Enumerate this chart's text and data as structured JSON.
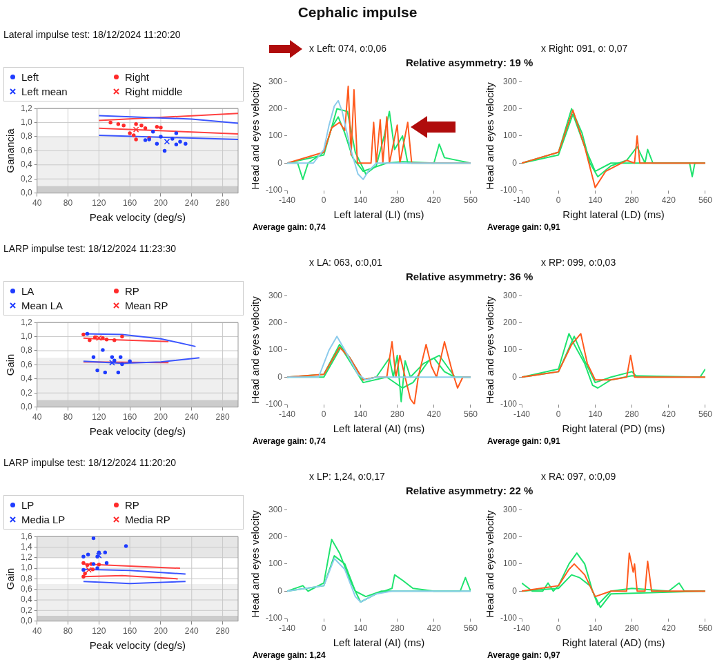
{
  "chart_data": [
    {
      "type": "other",
      "title": "Cephalic impulse"
    },
    {
      "type": "scatter",
      "title": "Lateral impulse test: 18/12/2024 11:20:20",
      "xlabel": "Peak velocity (deg/s)",
      "ylabel": "Ganancia",
      "xlim": [
        40,
        300
      ],
      "xticks": [
        40,
        80,
        120,
        160,
        200,
        240,
        280
      ],
      "ylim": [
        0,
        1.2
      ],
      "yticks": [
        {
          "value": 0,
          "label": "0,0"
        },
        {
          "value": 0.2,
          "label": "0,2"
        },
        {
          "value": 0.4,
          "label": "0,4"
        },
        {
          "value": 0.6,
          "label": "0,6"
        },
        {
          "value": 0.8,
          "label": "0,8"
        },
        {
          "value": 1,
          "label": "1,0"
        },
        {
          "value": 1.2,
          "label": "1,2"
        }
      ],
      "grid": true,
      "legend": "top",
      "bands": [
        {
          "axis": "y",
          "from": 0,
          "to": 0.8,
          "color": "#efefef"
        },
        {
          "axis": "y",
          "from": 0,
          "to": 0.1,
          "color": "#cccccc"
        }
      ],
      "series": [
        {
          "name": "Left",
          "color": "#1f3cff",
          "marker": "circle",
          "x": [
            180,
            185,
            190,
            195,
            200,
            205,
            215,
            220,
            220,
            225,
            232
          ],
          "values": [
            0.75,
            0.76,
            0.87,
            0.7,
            0.8,
            0.6,
            0.77,
            0.69,
            0.85,
            0.73,
            0.7
          ]
        },
        {
          "name": "Right",
          "color": "#ff2a2a",
          "marker": "circle",
          "x": [
            135,
            145,
            152,
            160,
            165,
            168,
            168,
            175,
            180,
            185,
            195,
            200
          ],
          "values": [
            1,
            0.98,
            0.96,
            0.85,
            0.82,
            0.98,
            0.76,
            0.96,
            0.92,
            0.78,
            0.94,
            0.93
          ]
        },
        {
          "name": "Left mean",
          "color": "#1f3cff",
          "marker": "cross",
          "x": [
            208
          ],
          "values": [
            0.73
          ]
        },
        {
          "name": "Right middle",
          "color": "#ff2a2a",
          "marker": "cross",
          "x": [
            168
          ],
          "values": [
            0.9
          ]
        },
        {
          "type": "line",
          "color": "#3b55ff",
          "marker": "none",
          "x": [
            120,
            240,
            300
          ],
          "values": [
            1.1,
            1.05,
            0.99
          ]
        },
        {
          "type": "line",
          "color": "#3b55ff",
          "marker": "none",
          "x": [
            120,
            300
          ],
          "values": [
            0.82,
            0.76
          ]
        },
        {
          "type": "line",
          "color": "#ff4040",
          "marker": "none",
          "x": [
            120,
            300
          ],
          "values": [
            1.03,
            1.13
          ]
        },
        {
          "type": "line",
          "color": "#ff4040",
          "marker": "none",
          "x": [
            120,
            300
          ],
          "values": [
            0.92,
            0.84
          ]
        }
      ]
    },
    {
      "type": "line",
      "title": "Relative asymmetry: 19 %",
      "subtitle": "x Left: 074, o:0,06",
      "xlabel": "Left lateral (LI) (ms)",
      "ylabel": "Head and eyes velocity",
      "xlim": [
        -140,
        560
      ],
      "xticks": [
        -140,
        0,
        140,
        280,
        420,
        560
      ],
      "ylim": [
        -100,
        300
      ],
      "yticks": [
        -100,
        0,
        100,
        200,
        300
      ],
      "grid": false,
      "marker": "none",
      "annotations": [
        "Average gain: 0,74"
      ],
      "series": [
        {
          "color": "#8ccbec",
          "x": [
            -140,
            -40,
            0,
            20,
            40,
            55,
            70,
            100,
            130,
            150,
            170,
            200,
            560
          ],
          "values": [
            0,
            0,
            50,
            140,
            210,
            230,
            190,
            60,
            -40,
            -60,
            -30,
            0,
            0
          ]
        },
        {
          "color": "#ff5a1e",
          "x": [
            -140,
            0,
            30,
            60,
            80,
            93,
            104,
            115,
            128,
            180,
            190,
            200,
            215,
            225,
            240,
            250,
            280,
            290,
            320,
            335,
            560
          ],
          "values": [
            0,
            40,
            130,
            150,
            120,
            283,
            30,
            270,
            0,
            0,
            150,
            0,
            160,
            0,
            170,
            0,
            140,
            0,
            150,
            0,
            0
          ]
        },
        {
          "color": "#1ee36e",
          "x": [
            -140,
            -100,
            -80,
            -60,
            0,
            30,
            55,
            80,
            110,
            150,
            180,
            240,
            300,
            420,
            440,
            460,
            560
          ],
          "values": [
            0,
            0,
            -60,
            0,
            40,
            130,
            170,
            110,
            20,
            -30,
            -20,
            0,
            5,
            0,
            70,
            20,
            0
          ]
        },
        {
          "color": "#1ee36e",
          "x": [
            -140,
            0,
            50,
            90,
            120,
            160,
            200,
            230,
            250,
            270,
            300,
            320,
            560
          ],
          "values": [
            0,
            30,
            200,
            190,
            40,
            -40,
            -10,
            100,
            190,
            50,
            100,
            0,
            0
          ]
        }
      ]
    },
    {
      "type": "line",
      "subtitle": "x Right: 091, o: 0,07",
      "xlabel": "Right lateral (LD) (ms)",
      "ylabel": "Head and eyes velocity",
      "xlim": [
        -140,
        560
      ],
      "xticks": [
        -140,
        0,
        140,
        280,
        420,
        560
      ],
      "ylim": [
        -100,
        300
      ],
      "yticks": [
        -100,
        0,
        100,
        200,
        300
      ],
      "grid": false,
      "marker": "none",
      "annotations": [
        "Average gain: 0,91"
      ],
      "series": [
        {
          "color": "#ff5a1e",
          "x": [
            -140,
            0,
            55,
            100,
            140,
            180,
            260,
            290,
            300,
            310,
            560
          ],
          "values": [
            0,
            40,
            195,
            60,
            -90,
            -30,
            10,
            0,
            100,
            0,
            0
          ]
        },
        {
          "color": "#1ee36e",
          "x": [
            -140,
            0,
            50,
            90,
            120,
            150,
            200,
            260,
            300,
            330,
            340,
            360,
            500,
            510,
            520,
            560
          ],
          "values": [
            0,
            40,
            200,
            110,
            0,
            -50,
            -10,
            10,
            60,
            0,
            50,
            0,
            0,
            -50,
            0,
            0
          ]
        },
        {
          "color": "#1ee36e",
          "x": [
            -140,
            0,
            55,
            100,
            140,
            200,
            560
          ],
          "values": [
            0,
            30,
            180,
            60,
            -30,
            0,
            0
          ]
        }
      ]
    },
    {
      "type": "scatter",
      "title": "LARP impulse test: 18/12/2024 11:23:30",
      "xlabel": "Peak velocity (deg/s)",
      "ylabel": "Gain",
      "xlim": [
        40,
        300
      ],
      "xticks": [
        40,
        80,
        120,
        160,
        200,
        240,
        280
      ],
      "ylim": [
        0,
        1.2
      ],
      "yticks": [
        {
          "value": 0,
          "label": "0,0"
        },
        {
          "value": 0.2,
          "label": "0,2"
        },
        {
          "value": 0.4,
          "label": "0,4"
        },
        {
          "value": 0.6,
          "label": "0,6"
        },
        {
          "value": 0.8,
          "label": "0,8"
        },
        {
          "value": 1,
          "label": "1,0"
        },
        {
          "value": 1.2,
          "label": "1,2"
        }
      ],
      "grid": true,
      "legend": "top",
      "bands": [
        {
          "axis": "y",
          "from": 0,
          "to": 0.7,
          "color": "#efefef"
        },
        {
          "axis": "y",
          "from": 0,
          "to": 0.1,
          "color": "#cccccc"
        }
      ],
      "series": [
        {
          "name": "LA",
          "color": "#1f3cff",
          "marker": "circle",
          "x": [
            105,
            113,
            118,
            125,
            128,
            137,
            140,
            145,
            148,
            150,
            160
          ],
          "values": [
            1.04,
            0.71,
            0.52,
            0.81,
            0.49,
            0.71,
            0.66,
            0.49,
            0.71,
            0.61,
            0.65
          ]
        },
        {
          "name": "RP",
          "color": "#ff2a2a",
          "marker": "circle",
          "x": [
            100,
            108,
            115,
            125,
            130,
            140,
            150
          ],
          "values": [
            1.03,
            0.95,
            0.99,
            0.98,
            0.96,
            0.95,
            1
          ]
        },
        {
          "name": "Mean LA",
          "color": "#1f3cff",
          "marker": "cross",
          "x": [
            137
          ],
          "values": [
            0.63
          ]
        },
        {
          "name": "Mean RP",
          "color": "#ff2a2a",
          "marker": "cross",
          "x": [
            120
          ],
          "values": [
            0.98
          ]
        },
        {
          "type": "line",
          "color": "#3b55ff",
          "marker": "none",
          "x": [
            100,
            150,
            200,
            245
          ],
          "values": [
            1.04,
            1.03,
            0.97,
            0.86
          ]
        },
        {
          "type": "line",
          "color": "#3b55ff",
          "marker": "none",
          "x": [
            100,
            150,
            200,
            250
          ],
          "values": [
            0.65,
            0.62,
            0.64,
            0.7
          ]
        },
        {
          "type": "line",
          "color": "#ff4040",
          "marker": "none",
          "x": [
            100,
            130,
            210
          ],
          "values": [
            0.98,
            0.96,
            0.93
          ]
        },
        {
          "type": "line",
          "color": "#ff4040",
          "marker": "none",
          "x": [
            100,
            210
          ],
          "values": [
            0.64,
            0.63
          ]
        }
      ]
    },
    {
      "type": "line",
      "title": "Relative asymmetry: 36 %",
      "subtitle": "x LA: 063, o:0,01",
      "xlabel": "Left lateral (AI) (ms)",
      "ylabel": "Head and eyes velocity",
      "xlim": [
        -140,
        560
      ],
      "xticks": [
        -140,
        0,
        140,
        280,
        420,
        560
      ],
      "ylim": [
        -100,
        300
      ],
      "yticks": [
        -100,
        0,
        100,
        200,
        300
      ],
      "grid": false,
      "marker": "none",
      "annotations": [
        "Average gain: 0,74"
      ],
      "series": [
        {
          "color": "#8ccbec",
          "x": [
            -140,
            -20,
            20,
            50,
            80,
            130,
            160,
            200,
            560
          ],
          "values": [
            0,
            0,
            100,
            150,
            100,
            10,
            -10,
            0,
            0
          ]
        },
        {
          "color": "#ff5a1e",
          "x": [
            -140,
            0,
            60,
            100,
            150,
            200,
            240,
            260,
            275,
            290,
            310,
            330,
            345,
            360,
            390,
            410,
            430,
            460,
            490,
            510,
            530,
            560
          ],
          "values": [
            0,
            10,
            110,
            70,
            -10,
            0,
            0,
            130,
            0,
            80,
            0,
            -80,
            -100,
            0,
            120,
            40,
            0,
            130,
            20,
            -40,
            0,
            0
          ]
        },
        {
          "color": "#1ee36e",
          "x": [
            -140,
            0,
            60,
            100,
            150,
            200,
            250,
            265,
            280,
            295,
            310,
            330,
            380,
            420,
            460,
            500,
            560
          ],
          "values": [
            0,
            10,
            120,
            70,
            -10,
            0,
            70,
            0,
            80,
            -90,
            60,
            0,
            50,
            70,
            20,
            0,
            0
          ]
        },
        {
          "color": "#1ee36e",
          "x": [
            -140,
            0,
            65,
            150,
            240,
            300,
            340,
            400,
            440,
            470,
            500,
            560
          ],
          "values": [
            0,
            0,
            110,
            -20,
            0,
            -40,
            -20,
            60,
            80,
            40,
            0,
            0
          ]
        }
      ]
    },
    {
      "type": "line",
      "subtitle": "x RP: 099, o:0,03",
      "xlabel": "Right lateral (PD) (ms)",
      "ylabel": "Head and eyes velocity",
      "xlim": [
        -140,
        560
      ],
      "xticks": [
        -140,
        0,
        140,
        280,
        420,
        560
      ],
      "ylim": [
        -100,
        300
      ],
      "yticks": [
        -100,
        0,
        100,
        200,
        300
      ],
      "grid": false,
      "marker": "none",
      "annotations": [
        "Average gain: 0,91"
      ],
      "series": [
        {
          "color": "#ff5a1e",
          "x": [
            -140,
            0,
            50,
            85,
            110,
            140,
            200,
            260,
            275,
            290,
            560
          ],
          "values": [
            0,
            20,
            120,
            160,
            50,
            -10,
            -10,
            0,
            80,
            0,
            0
          ]
        },
        {
          "color": "#1ee36e",
          "x": [
            -140,
            0,
            40,
            60,
            100,
            130,
            150,
            200,
            280,
            540,
            560
          ],
          "values": [
            0,
            30,
            160,
            120,
            50,
            -30,
            -40,
            -10,
            5,
            0,
            30
          ]
        },
        {
          "color": "#1ee36e",
          "x": [
            -140,
            0,
            60,
            100,
            140,
            200,
            280,
            300,
            560
          ],
          "values": [
            0,
            20,
            150,
            60,
            -20,
            0,
            20,
            0,
            0
          ]
        }
      ]
    },
    {
      "type": "scatter",
      "title": "LARP impulse test: 18/12/2024 11:20:20",
      "xlabel": "Peak velocity (deg/s)",
      "ylabel": "Gain",
      "xlim": [
        40,
        300
      ],
      "xticks": [
        40,
        80,
        120,
        160,
        200,
        240,
        280
      ],
      "ylim": [
        0,
        1.6
      ],
      "yticks": [
        {
          "value": 0,
          "label": "0,0"
        },
        {
          "value": 0.2,
          "label": "0,2"
        },
        {
          "value": 0.4,
          "label": "0,4"
        },
        {
          "value": 0.6,
          "label": "0,6"
        },
        {
          "value": 0.8,
          "label": "0,8"
        },
        {
          "value": 1,
          "label": "1,0"
        },
        {
          "value": 1.2,
          "label": "1,2"
        },
        {
          "value": 1.4,
          "label": "1,4"
        },
        {
          "value": 1.6,
          "label": "1,6"
        }
      ],
      "grid": true,
      "legend": "top",
      "bands": [
        {
          "axis": "y",
          "from": 0,
          "to": 0.7,
          "color": "#efefef"
        },
        {
          "axis": "y",
          "from": 1.2,
          "to": 1.6,
          "color": "#e6e6e6"
        },
        {
          "axis": "y",
          "from": 0,
          "to": 0.1,
          "color": "#cccccc"
        }
      ],
      "series": [
        {
          "name": "LP",
          "color": "#1f3cff",
          "marker": "circle",
          "x": [
            100,
            100,
            106,
            113,
            113,
            118,
            118,
            120,
            128,
            130,
            155
          ],
          "values": [
            1.22,
            0.97,
            1.26,
            1.57,
            1.08,
            1.22,
            1,
            1.3,
            1.3,
            1.1,
            1.42
          ]
        },
        {
          "name": "RP",
          "color": "#ff2a2a",
          "marker": "circle",
          "x": [
            100,
            100,
            102,
            105,
            110,
            112,
            120
          ],
          "values": [
            1.1,
            0.84,
            0.9,
            1.06,
            1.08,
            0.98,
            1.07
          ]
        },
        {
          "name": "Media LP",
          "color": "#1f3cff",
          "marker": "cross",
          "x": [
            120
          ],
          "values": [
            1.24
          ]
        },
        {
          "name": "Media RP",
          "color": "#ff2a2a",
          "marker": "cross",
          "x": [
            107
          ],
          "values": [
            0.97
          ]
        },
        {
          "type": "line",
          "color": "#3b55ff",
          "marker": "none",
          "x": [
            100,
            160,
            232
          ],
          "values": [
            0.98,
            0.96,
            0.89
          ]
        },
        {
          "type": "line",
          "color": "#3b55ff",
          "marker": "none",
          "x": [
            100,
            160,
            232
          ],
          "values": [
            0.75,
            0.71,
            0.75
          ]
        },
        {
          "type": "line",
          "color": "#ff4040",
          "marker": "none",
          "x": [
            100,
            225
          ],
          "values": [
            1.08,
            1
          ]
        },
        {
          "type": "line",
          "color": "#ff4040",
          "marker": "none",
          "x": [
            100,
            150,
            222
          ],
          "values": [
            0.84,
            0.86,
            0.8
          ]
        }
      ]
    },
    {
      "type": "line",
      "title": "Relative asymmetry: 22 %",
      "subtitle": "x LP: 1,24, o:0,17",
      "xlabel": "Left lateral (AI) (ms)",
      "ylabel": "Head and eyes velocity",
      "xlim": [
        -140,
        560
      ],
      "xticks": [
        -140,
        0,
        140,
        280,
        420,
        560
      ],
      "ylim": [
        -100,
        300
      ],
      "yticks": [
        -100,
        0,
        100,
        200,
        300
      ],
      "grid": false,
      "marker": "none",
      "annotations": [
        "Average gain: 1,24"
      ],
      "series": [
        {
          "color": "#8ccbec",
          "x": [
            -140,
            0,
            40,
            80,
            120,
            140,
            200,
            260,
            560
          ],
          "values": [
            0,
            20,
            120,
            80,
            -20,
            -40,
            -10,
            0,
            0
          ]
        },
        {
          "color": "#1ee36e",
          "x": [
            -140,
            -80,
            -60,
            0,
            30,
            60,
            100,
            140,
            200,
            260,
            270,
            300,
            340,
            420,
            520,
            540,
            560
          ],
          "values": [
            0,
            20,
            0,
            30,
            190,
            140,
            40,
            -40,
            -10,
            10,
            60,
            40,
            10,
            0,
            0,
            50,
            0
          ]
        },
        {
          "color": "#1ee36e",
          "x": [
            -140,
            0,
            40,
            80,
            120,
            160,
            220,
            560
          ],
          "values": [
            0,
            20,
            130,
            100,
            0,
            -20,
            0,
            0
          ]
        }
      ]
    },
    {
      "type": "line",
      "subtitle": "x RA: 097, o:0,09",
      "xlabel": "Right lateral (AD) (ms)",
      "ylabel": "Head and eyes velocity",
      "xlim": [
        -140,
        560
      ],
      "xticks": [
        -140,
        0,
        140,
        280,
        420,
        560
      ],
      "ylim": [
        -100,
        300
      ],
      "yticks": [
        -100,
        0,
        100,
        200,
        300
      ],
      "grid": false,
      "marker": "none",
      "annotations": [
        "Average gain: 0,97"
      ],
      "series": [
        {
          "color": "#ff5a1e",
          "x": [
            -140,
            0,
            40,
            60,
            100,
            140,
            200,
            260,
            270,
            285,
            290,
            300,
            330,
            340,
            355,
            560
          ],
          "values": [
            0,
            20,
            80,
            100,
            60,
            -20,
            0,
            0,
            140,
            70,
            100,
            0,
            0,
            110,
            0,
            0
          ]
        },
        {
          "color": "#1ee36e",
          "x": [
            -140,
            -100,
            -60,
            -40,
            -20,
            0,
            40,
            70,
            100,
            130,
            150,
            170,
            200,
            280,
            420,
            460,
            480,
            560
          ],
          "values": [
            30,
            0,
            0,
            30,
            0,
            20,
            100,
            140,
            100,
            0,
            -50,
            -30,
            0,
            10,
            0,
            30,
            0,
            0
          ]
        },
        {
          "color": "#1ee36e",
          "x": [
            -140,
            0,
            50,
            80,
            120,
            160,
            200,
            560
          ],
          "values": [
            0,
            10,
            60,
            50,
            20,
            -60,
            -10,
            0
          ]
        }
      ]
    }
  ]
}
